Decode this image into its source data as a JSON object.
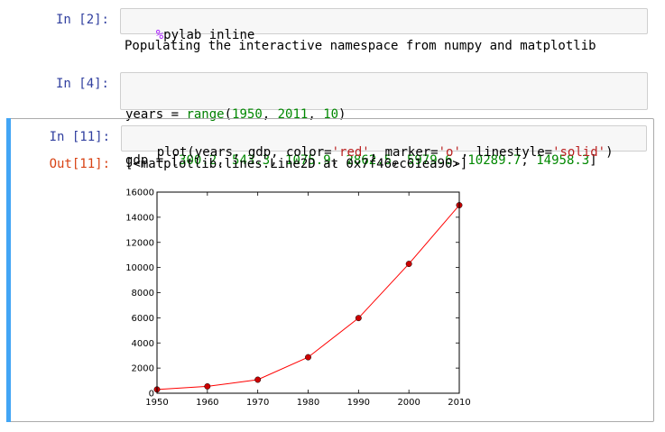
{
  "cells": [
    {
      "prompt": "In [2]:",
      "code_tokens": [
        {
          "text": "%",
          "cls": "tok-magic"
        },
        {
          "text": "pylab inline",
          "cls": ""
        }
      ],
      "output": "Populating the interactive namespace from numpy and matplotlib"
    },
    {
      "prompt": "In [4]:",
      "line1_tokens": [
        {
          "text": "years = ",
          "cls": ""
        },
        {
          "text": "range",
          "cls": "tok-builtin"
        },
        {
          "text": "(",
          "cls": ""
        },
        {
          "text": "1950",
          "cls": "tok-num"
        },
        {
          "text": ", ",
          "cls": ""
        },
        {
          "text": "2011",
          "cls": "tok-num"
        },
        {
          "text": ", ",
          "cls": ""
        },
        {
          "text": "10",
          "cls": "tok-num"
        },
        {
          "text": ")",
          "cls": ""
        }
      ],
      "line2_tokens": [
        {
          "text": "gdp = [",
          "cls": ""
        },
        {
          "text": "300.2",
          "cls": "tok-num"
        },
        {
          "text": ", ",
          "cls": ""
        },
        {
          "text": "543.3",
          "cls": "tok-num"
        },
        {
          "text": ", ",
          "cls": ""
        },
        {
          "text": "1075.9",
          "cls": "tok-num"
        },
        {
          "text": ", ",
          "cls": ""
        },
        {
          "text": "2862.5",
          "cls": "tok-num"
        },
        {
          "text": ", ",
          "cls": ""
        },
        {
          "text": "5979.6",
          "cls": "tok-num"
        },
        {
          "text": ", ",
          "cls": ""
        },
        {
          "text": "10289.7",
          "cls": "tok-num"
        },
        {
          "text": ", ",
          "cls": ""
        },
        {
          "text": "14958.3",
          "cls": "tok-num"
        },
        {
          "text": "]",
          "cls": ""
        }
      ]
    },
    {
      "prompt": "In [11]:",
      "code_tokens": [
        {
          "text": "plot(years, gdp, color=",
          "cls": ""
        },
        {
          "text": "'red'",
          "cls": "tok-str"
        },
        {
          "text": ", marker=",
          "cls": ""
        },
        {
          "text": "'o'",
          "cls": "tok-str"
        },
        {
          "text": ", linestyle=",
          "cls": ""
        },
        {
          "text": "'solid'",
          "cls": "tok-str"
        },
        {
          "text": ")",
          "cls": ""
        }
      ],
      "out_prompt": "Out[11]:",
      "output": "[<matplotlib.lines.Line2D at 0x7f46ec61ea90>]"
    }
  ],
  "chart_data": {
    "type": "line",
    "x": [
      1950,
      1960,
      1970,
      1980,
      1990,
      2000,
      2010
    ],
    "series": [
      {
        "values": [
          300.2,
          543.3,
          1075.9,
          2862.5,
          5979.6,
          10289.7,
          14958.3
        ],
        "color": "#ff0000",
        "marker_color": "#cc0000"
      }
    ],
    "xlim": [
      1950,
      2010
    ],
    "ylim": [
      0,
      16000
    ],
    "xticks": [
      1950,
      1960,
      1970,
      1980,
      1990,
      2000,
      2010
    ],
    "yticks": [
      0,
      2000,
      4000,
      6000,
      8000,
      10000,
      12000,
      14000,
      16000
    ],
    "title": "",
    "xlabel": "",
    "ylabel": "",
    "grid": false
  },
  "colors": {
    "selected_bar": "#42a5f5",
    "in_prompt": "#303f9f",
    "out_prompt": "#d84315"
  }
}
